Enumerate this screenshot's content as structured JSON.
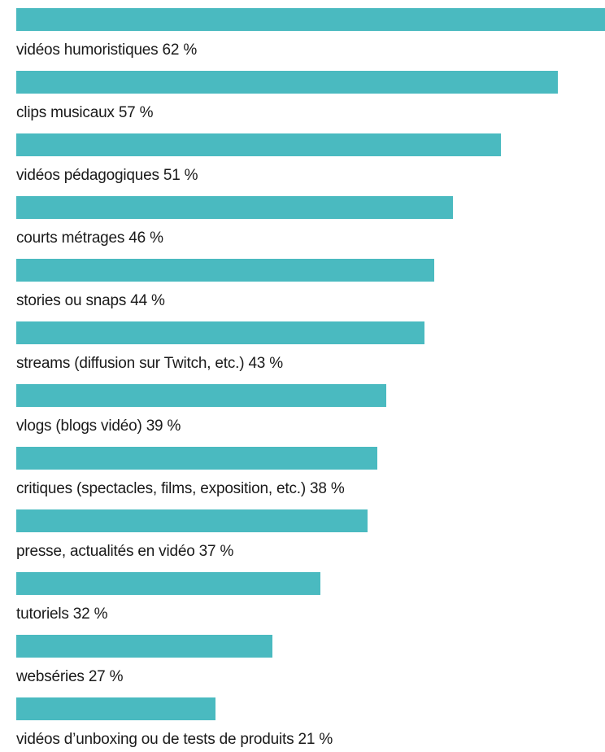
{
  "chart_data": {
    "type": "bar",
    "orientation": "horizontal",
    "unit": "%",
    "bar_color": "#4ABAC0",
    "categories": [
      "vidéos humoristiques",
      "clips musicaux",
      "vidéos pédagogiques",
      "courts métrages",
      "stories ou snaps",
      "streams (diffusion sur Twitch, etc.)",
      "vlogs (blogs vidéo)",
      "critiques (spectacles, films, exposition, etc.)",
      "presse, actualités en vidéo",
      "tutoriels",
      "webséries",
      "vidéos d’unboxing ou de tests de produits"
    ],
    "values": [
      62,
      57,
      51,
      46,
      44,
      43,
      39,
      38,
      37,
      32,
      27,
      21
    ],
    "labels": [
      "vidéos humoristiques 62 %",
      "clips musicaux 57 %",
      "vidéos pédagogiques 51 %",
      "courts métrages 46 %",
      "stories ou snaps 44 %",
      "streams (diffusion sur Twitch, etc.) 43 %",
      "vlogs (blogs vidéo) 39 %",
      "critiques (spectacles, films, exposition, etc.) 38 %",
      "presse, actualités en vidéo 37 %",
      "tutoriels 32 %",
      "webséries 27 %",
      "vidéos d’unboxing ou de tests de produits 21 %"
    ]
  }
}
